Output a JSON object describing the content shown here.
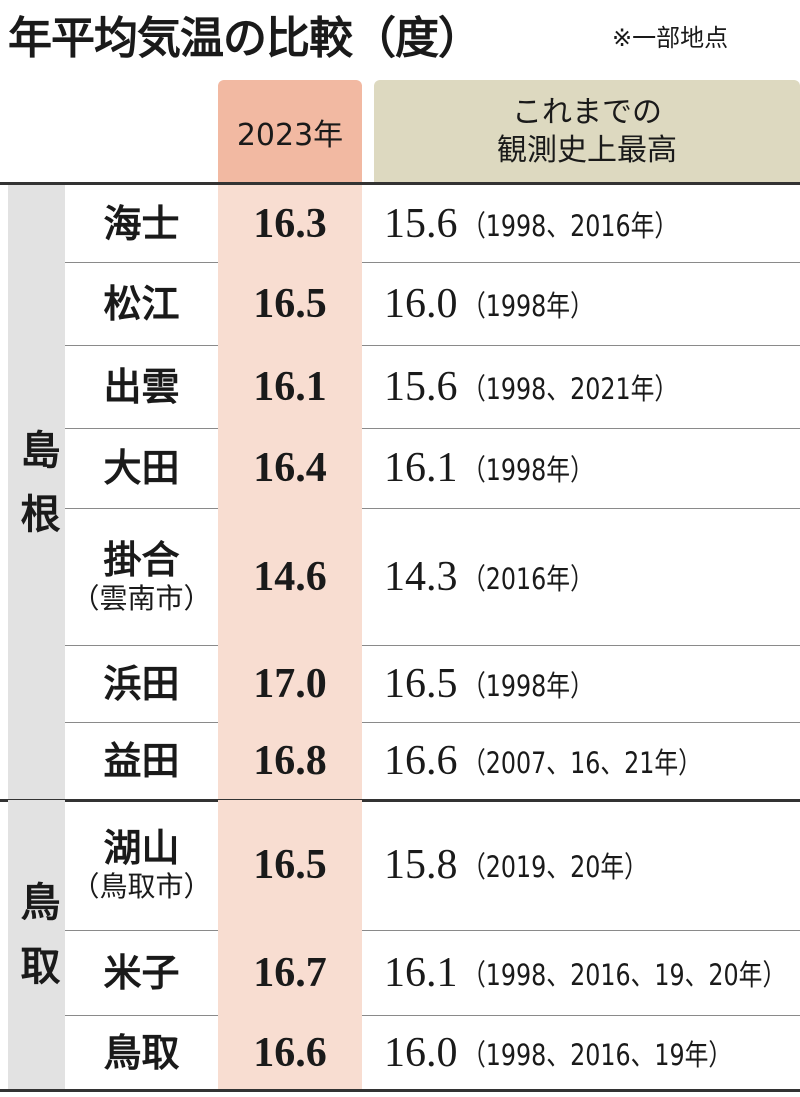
{
  "header": {
    "title": "年平均気温の比較（度）",
    "note": "※一部地点"
  },
  "table": {
    "columns": [
      "2023年",
      [
        "これまでの",
        "観測史上最高"
      ]
    ],
    "groups": [
      {
        "name": "島根",
        "rows": [
          {
            "place": "海士",
            "value": "16.3",
            "record": "15.6",
            "record_years": "（1998、2016年）"
          },
          {
            "place": "松江",
            "value": "16.5",
            "record": "16.0",
            "record_years": "（1998年）"
          },
          {
            "place": "出雲",
            "value": "16.1",
            "record": "15.6",
            "record_years": "（1998、2021年）"
          },
          {
            "place": "大田",
            "value": "16.4",
            "record": "16.1",
            "record_years": "（1998年）"
          },
          {
            "place": "掛合",
            "sub": "（雲南市）",
            "value": "14.6",
            "record": "14.3",
            "record_years": "（2016年）"
          },
          {
            "place": "浜田",
            "value": "17.0",
            "record": "16.5",
            "record_years": "（1998年）"
          },
          {
            "place": "益田",
            "value": "16.8",
            "record": "16.6",
            "record_years": "（2007、16、21年）"
          }
        ]
      },
      {
        "name": "鳥取",
        "rows": [
          {
            "place": "湖山",
            "sub": "（鳥取市）",
            "value": "16.5",
            "record": "15.8",
            "record_years": "（2019、20年）"
          },
          {
            "place": "米子",
            "value": "16.7",
            "record": "16.1",
            "record_years": "（1998、2016、19、20年）"
          },
          {
            "place": "鳥取",
            "value": "16.6",
            "record": "16.0",
            "record_years": "（1998、2016、19年）"
          }
        ]
      }
    ]
  }
}
